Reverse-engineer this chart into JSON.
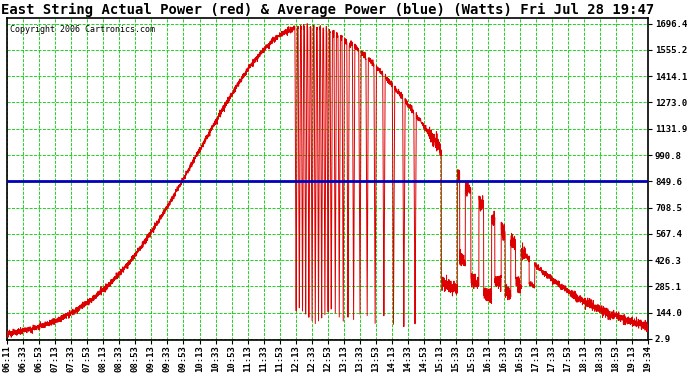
{
  "title": "East String Actual Power (red) & Average Power (blue) (Watts) Fri Jul 28 19:47",
  "copyright": "Copyright 2006 Cartronics.com",
  "yticks": [
    2.9,
    144.0,
    285.1,
    426.3,
    567.4,
    708.5,
    849.6,
    990.8,
    1131.9,
    1273.0,
    1414.1,
    1555.2,
    1696.4
  ],
  "ymin": 2.9,
  "ymax": 1696.4,
  "average_power": 849.6,
  "avg_line_color": "#0000bb",
  "actual_line_color": "#dd0000",
  "grid_color": "#00cc00",
  "bg_color": "#ffffff",
  "plot_bg_color": "#ffffff",
  "xtick_labels": [
    "06:11",
    "06:33",
    "06:53",
    "07:13",
    "07:33",
    "07:53",
    "08:13",
    "08:33",
    "08:53",
    "09:13",
    "09:33",
    "09:53",
    "10:13",
    "10:33",
    "10:53",
    "11:13",
    "11:33",
    "11:53",
    "12:13",
    "12:33",
    "12:53",
    "13:13",
    "13:33",
    "13:53",
    "14:13",
    "14:33",
    "14:53",
    "15:13",
    "15:33",
    "15:53",
    "16:13",
    "16:33",
    "16:53",
    "17:13",
    "17:33",
    "17:53",
    "18:13",
    "18:33",
    "18:53",
    "19:13",
    "19:34"
  ],
  "title_fontsize": 10,
  "tick_fontsize": 6.5,
  "copyright_fontsize": 6
}
